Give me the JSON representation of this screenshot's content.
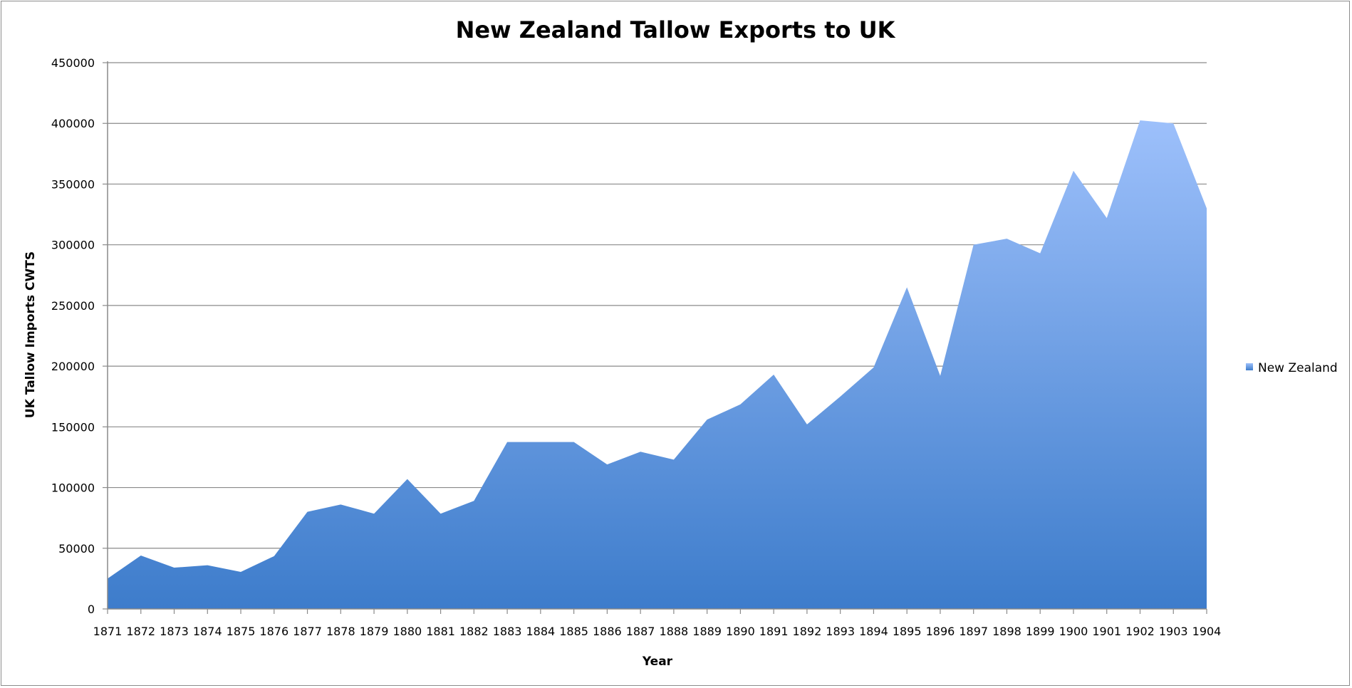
{
  "chart_data": {
    "type": "area",
    "title": "New Zealand Tallow Exports to UK",
    "xlabel": "Year",
    "ylabel": "UK Tallow Imports CWTS",
    "ylim": [
      0,
      450000
    ],
    "yticks": [
      "0",
      "50000",
      "100000",
      "150000",
      "200000",
      "250000",
      "300000",
      "350000",
      "400000",
      "450000"
    ],
    "grid": true,
    "legend_position": "right",
    "categories": [
      "1871",
      "1872",
      "1873",
      "1874",
      "1875",
      "1876",
      "1877",
      "1878",
      "1879",
      "1880",
      "1881",
      "1882",
      "1883",
      "1884",
      "1885",
      "1886",
      "1887",
      "1888",
      "1889",
      "1890",
      "1891",
      "1892",
      "1893",
      "1894",
      "1895",
      "1896",
      "1897",
      "1898",
      "1899",
      "1900",
      "1901",
      "1902",
      "1903",
      "1904"
    ],
    "series": [
      {
        "name": "New Zealand",
        "color_top": "#9dc0fb",
        "color_bottom": "#3d7ccb",
        "values": [
          25000,
          44000,
          34000,
          36000,
          30500,
          43500,
          80000,
          86000,
          78500,
          107000,
          78500,
          89000,
          137500,
          137500,
          137500,
          119000,
          129500,
          123000,
          156000,
          168500,
          193000,
          152000,
          175000,
          199000,
          265000,
          192000,
          300000,
          305000,
          293000,
          361000,
          322000,
          402500,
          400000,
          330000
        ]
      }
    ]
  }
}
